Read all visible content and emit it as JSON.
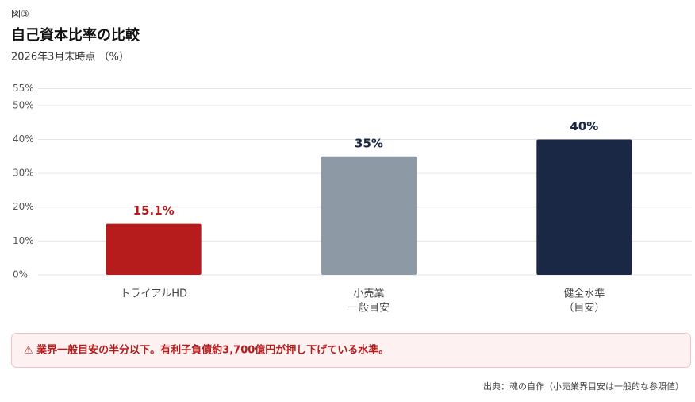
{
  "figure_label": "図③",
  "chart_data": {
    "type": "bar",
    "title": "自己資本比率の比較",
    "subtitle": "2026年3月末時点 （%）",
    "categories": [
      [
        "トライアルHD"
      ],
      [
        "小売業",
        "一般目安"
      ],
      [
        "健全水準",
        "（目安）"
      ]
    ],
    "values": [
      15.1,
      35,
      40
    ],
    "value_labels": [
      "15.1%",
      "35%",
      "40%"
    ],
    "colors": [
      "#b71c1c",
      "#8e99a6",
      "#1b2845"
    ],
    "value_label_colors": [
      "#b71c1c",
      "#1b2845",
      "#1b2845"
    ],
    "ylim": [
      0,
      55
    ],
    "yticks": [
      {
        "value": 0,
        "label": "0%"
      },
      {
        "value": 10,
        "label": "10%"
      },
      {
        "value": 20,
        "label": "20%"
      },
      {
        "value": 30,
        "label": "30%"
      },
      {
        "value": 40,
        "label": "40%"
      },
      {
        "value": 50,
        "label": "50%"
      },
      {
        "value": 55,
        "label": "55%"
      }
    ],
    "grid": true
  },
  "note": "⚠ 業界一般目安の半分以下。有利子負債約3,700億円が押し下げている水準。",
  "source": "出典：魂の自作（小売業界目安は一般的な参照値）"
}
